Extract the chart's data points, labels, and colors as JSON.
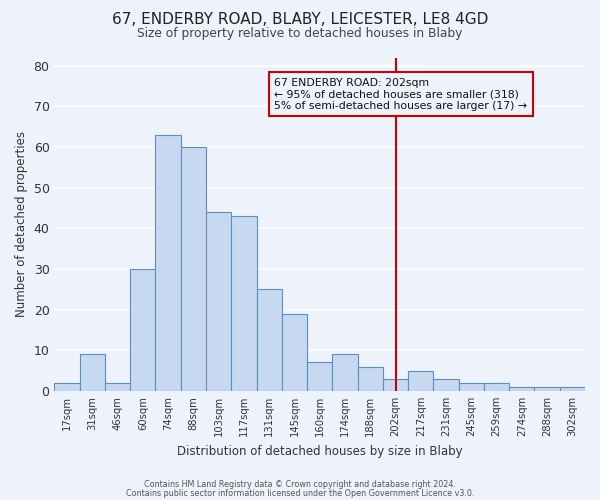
{
  "title": "67, ENDERBY ROAD, BLABY, LEICESTER, LE8 4GD",
  "subtitle": "Size of property relative to detached houses in Blaby",
  "xlabel": "Distribution of detached houses by size in Blaby",
  "ylabel": "Number of detached properties",
  "bar_labels": [
    "17sqm",
    "31sqm",
    "46sqm",
    "60sqm",
    "74sqm",
    "88sqm",
    "103sqm",
    "117sqm",
    "131sqm",
    "145sqm",
    "160sqm",
    "174sqm",
    "188sqm",
    "202sqm",
    "217sqm",
    "231sqm",
    "245sqm",
    "259sqm",
    "274sqm",
    "288sqm",
    "302sqm"
  ],
  "bar_values": [
    2,
    9,
    2,
    30,
    63,
    60,
    44,
    43,
    25,
    19,
    7,
    9,
    6,
    3,
    5,
    3,
    2,
    2,
    1,
    1,
    1
  ],
  "bar_color": "#c6d9f0",
  "bar_edge_color": "#5a8fc3",
  "vline_index": 13,
  "vline_color": "#cc0000",
  "annotation_title": "67 ENDERBY ROAD: 202sqm",
  "annotation_line1": "← 95% of detached houses are smaller (318)",
  "annotation_line2": "5% of semi-detached houses are larger (17) →",
  "footer1": "Contains HM Land Registry data © Crown copyright and database right 2024.",
  "footer2": "Contains public sector information licensed under the Open Government Licence v3.0.",
  "ylim": [
    0,
    82
  ],
  "yticks": [
    0,
    10,
    20,
    30,
    40,
    50,
    60,
    70,
    80
  ],
  "background_color": "#eef2fb",
  "grid_color": "#ffffff"
}
